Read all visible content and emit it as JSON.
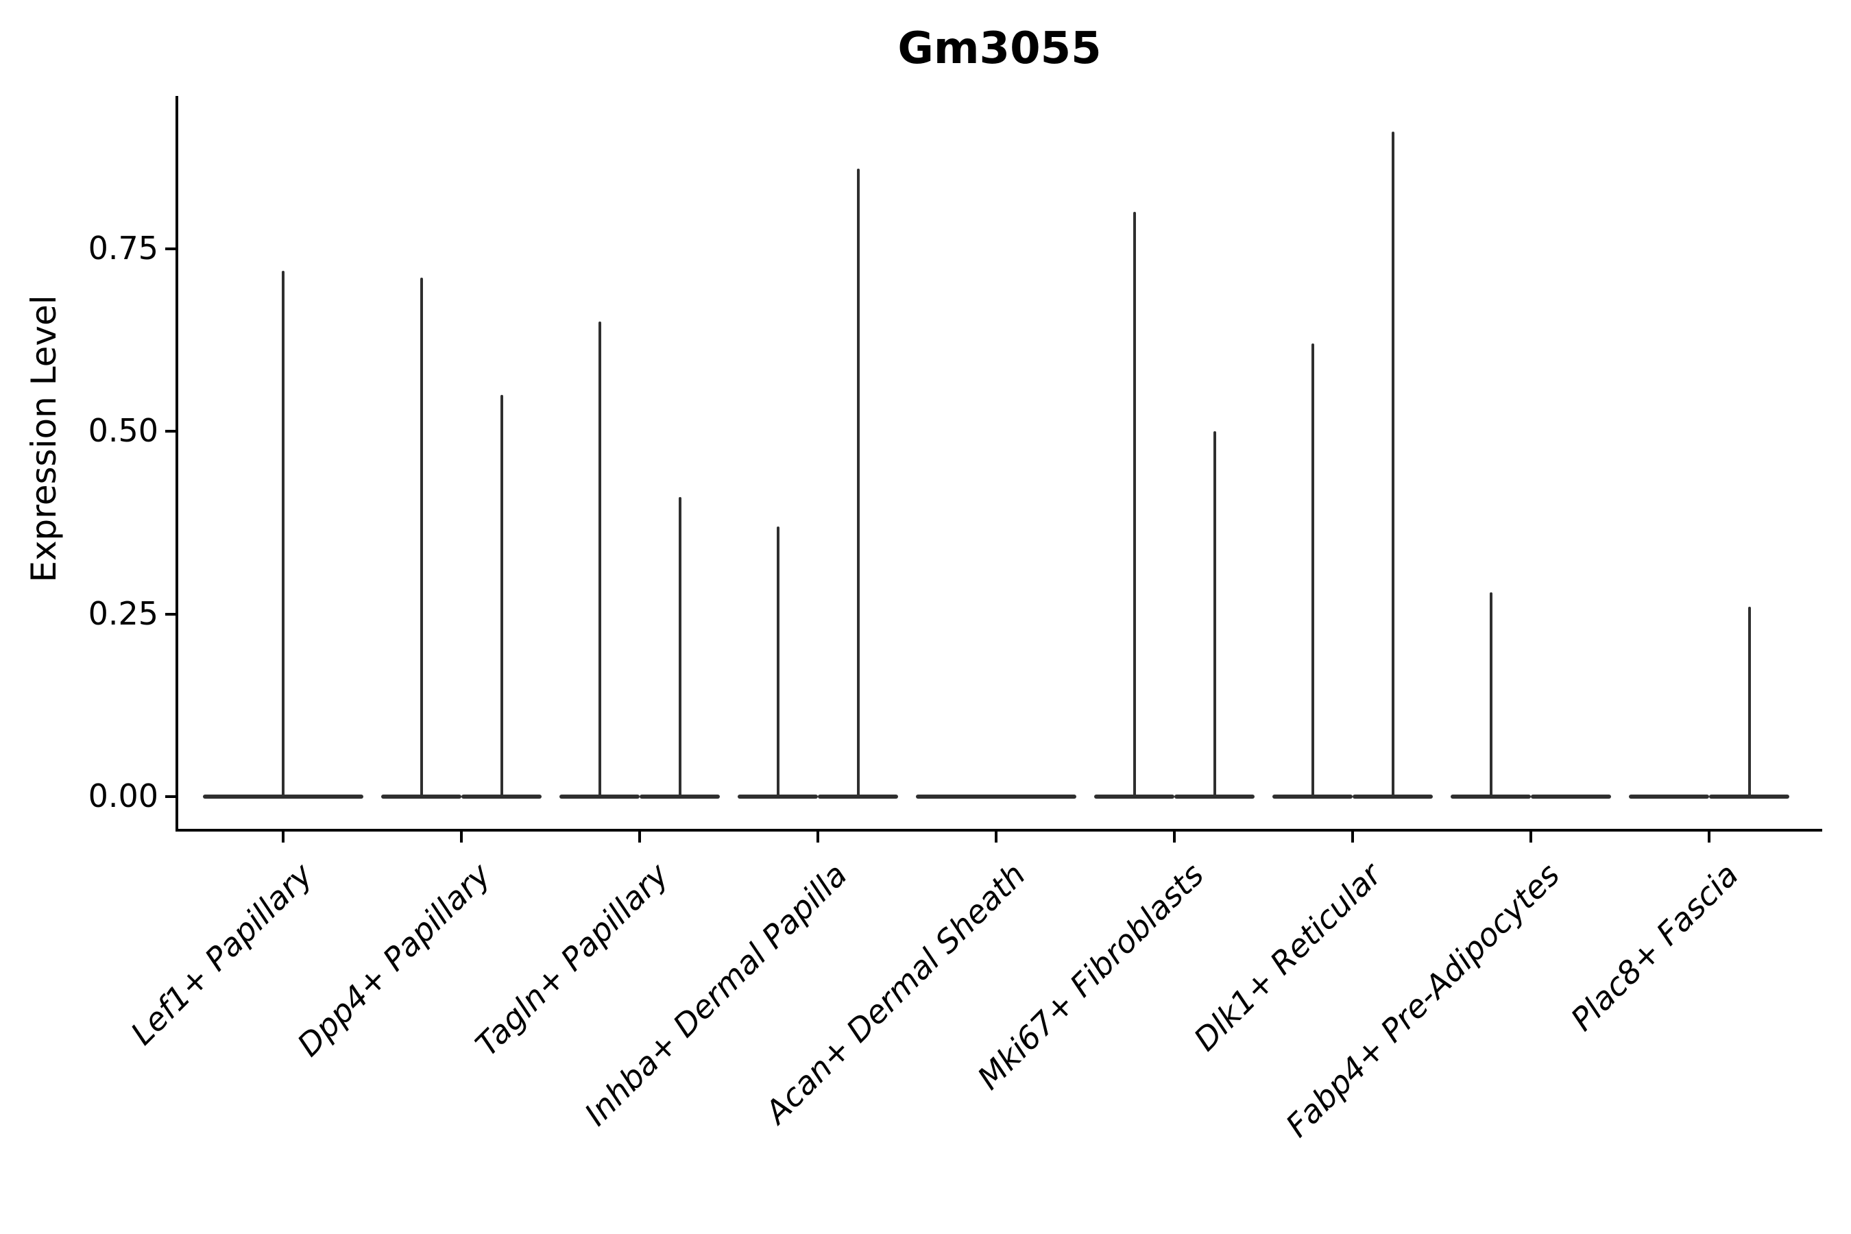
{
  "figure": {
    "background_color": "#ffffff",
    "axis_color": "#000000",
    "violin_color": "#2f2f2f"
  },
  "chart_data": {
    "type": "violin",
    "title": "Gm3055",
    "xlabel": "",
    "ylabel": "Expression Level",
    "ylim": [
      -0.046,
      0.959
    ],
    "grid": false,
    "legend": null,
    "yticks": [
      {
        "value": 0.0,
        "label": "0.00"
      },
      {
        "value": 0.25,
        "label": "0.25"
      },
      {
        "value": 0.5,
        "label": "0.50"
      },
      {
        "value": 0.75,
        "label": "0.75"
      }
    ],
    "categories": [
      "Lef1+ Papillary",
      "Dpp4+ Papillary",
      "Tagln+ Papillary",
      "Inhba+ Dermal Papilla",
      "Acan+ Dermal Sheath",
      "Mki67+ Fibroblasts",
      "Dlk1+ Reticular",
      "Fabp4+ Pre-Adipocytes",
      "Plac8+ Fascia"
    ],
    "groups": [
      {
        "category": "Lef1+ Papillary",
        "violins": [
          {
            "offset": 0.0,
            "width": 0.9,
            "max_expression": 0.72
          }
        ]
      },
      {
        "category": "Dpp4+ Papillary",
        "violins": [
          {
            "offset": -0.225,
            "width": 0.45,
            "max_expression": 0.71
          },
          {
            "offset": 0.225,
            "width": 0.45,
            "max_expression": 0.55
          }
        ]
      },
      {
        "category": "Tagln+ Papillary",
        "violins": [
          {
            "offset": -0.225,
            "width": 0.45,
            "max_expression": 0.65
          },
          {
            "offset": 0.225,
            "width": 0.45,
            "max_expression": 0.41
          }
        ]
      },
      {
        "category": "Inhba+ Dermal Papilla",
        "violins": [
          {
            "offset": -0.225,
            "width": 0.45,
            "max_expression": 0.37
          },
          {
            "offset": 0.225,
            "width": 0.45,
            "max_expression": 0.86
          }
        ]
      },
      {
        "category": "Acan+ Dermal Sheath",
        "violins": [
          {
            "offset": 0.0,
            "width": 0.9,
            "max_expression": 0.0
          }
        ]
      },
      {
        "category": "Mki67+ Fibroblasts",
        "violins": [
          {
            "offset": -0.225,
            "width": 0.45,
            "max_expression": 0.8
          },
          {
            "offset": 0.225,
            "width": 0.45,
            "max_expression": 0.5
          }
        ]
      },
      {
        "category": "Dlk1+ Reticular",
        "violins": [
          {
            "offset": -0.225,
            "width": 0.45,
            "max_expression": 0.62
          },
          {
            "offset": 0.225,
            "width": 0.45,
            "max_expression": 0.91
          }
        ]
      },
      {
        "category": "Fabp4+ Pre-Adipocytes",
        "violins": [
          {
            "offset": -0.225,
            "width": 0.45,
            "max_expression": 0.28
          },
          {
            "offset": 0.225,
            "width": 0.45,
            "max_expression": 0.0
          }
        ]
      },
      {
        "category": "Plac8+ Fascia",
        "violins": [
          {
            "offset": -0.225,
            "width": 0.45,
            "max_expression": 0.0
          },
          {
            "offset": 0.225,
            "width": 0.45,
            "max_expression": 0.26
          }
        ]
      }
    ]
  }
}
